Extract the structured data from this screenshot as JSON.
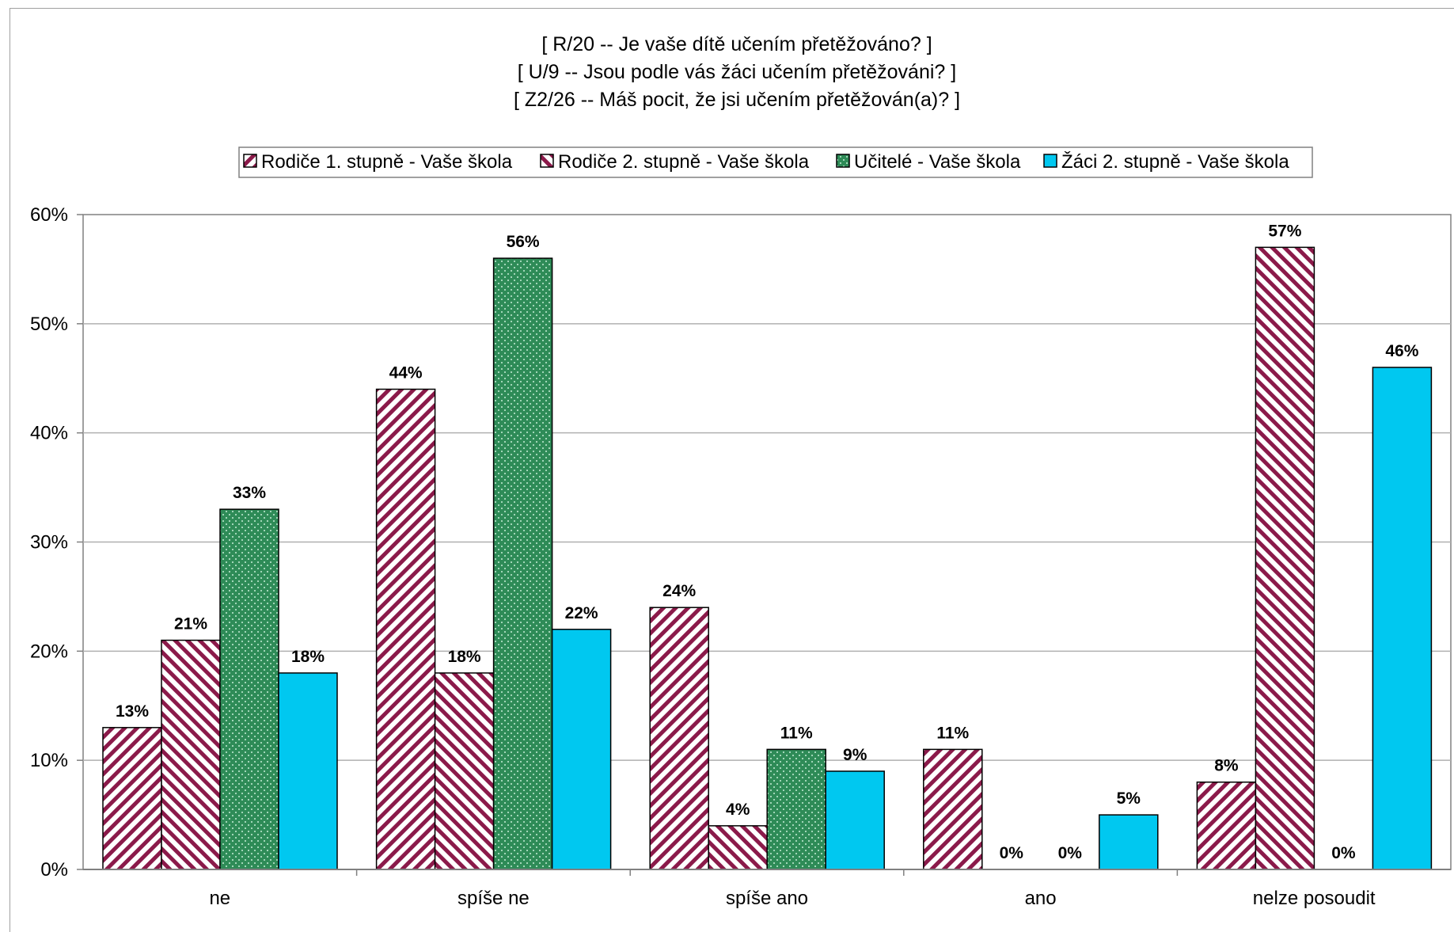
{
  "chart_data": {
    "type": "bar",
    "title": [
      "[ R/20 -- Je vaše dítě učením přetěžováno? ]",
      "[ U/9 -- Jsou podle vás žáci učením přetěžováni? ]",
      "[ Z2/26 -- Máš pocit, že jsi učením přetěžován(a)? ]"
    ],
    "categories": [
      "ne",
      "spíše ne",
      "spíše ano",
      "ano",
      "nelze posoudit"
    ],
    "series": [
      {
        "name": "Rodiče 1. stupně - Vaše škola",
        "values": [
          13,
          44,
          24,
          11,
          8
        ],
        "labels": [
          "13%",
          "44%",
          "24%",
          "11%",
          "8%"
        ],
        "fill": "hatch-backslash",
        "color": "#8b1a4a"
      },
      {
        "name": "Rodiče 2. stupně - Vaše škola",
        "values": [
          21,
          18,
          4,
          0,
          57
        ],
        "labels": [
          "21%",
          "18%",
          "4%",
          "0%",
          "57%"
        ],
        "fill": "hatch-slash",
        "color": "#8b1a4a"
      },
      {
        "name": "Učitelé - Vaše škola",
        "values": [
          33,
          56,
          11,
          0,
          0
        ],
        "labels": [
          "33%",
          "56%",
          "11%",
          "0%",
          "0%"
        ],
        "fill": "dotted",
        "color": "#2e8b57"
      },
      {
        "name": "Žáci 2. stupně - Vaše škola",
        "values": [
          18,
          22,
          9,
          5,
          46
        ],
        "labels": [
          "18%",
          "22%",
          "9%",
          "5%",
          "46%"
        ],
        "fill": "solid",
        "color": "#00c8f0"
      }
    ],
    "yticks": [
      "0%",
      "10%",
      "20%",
      "30%",
      "40%",
      "50%",
      "60%"
    ],
    "ylim": [
      0,
      60
    ],
    "grid": true,
    "legend": "top"
  }
}
